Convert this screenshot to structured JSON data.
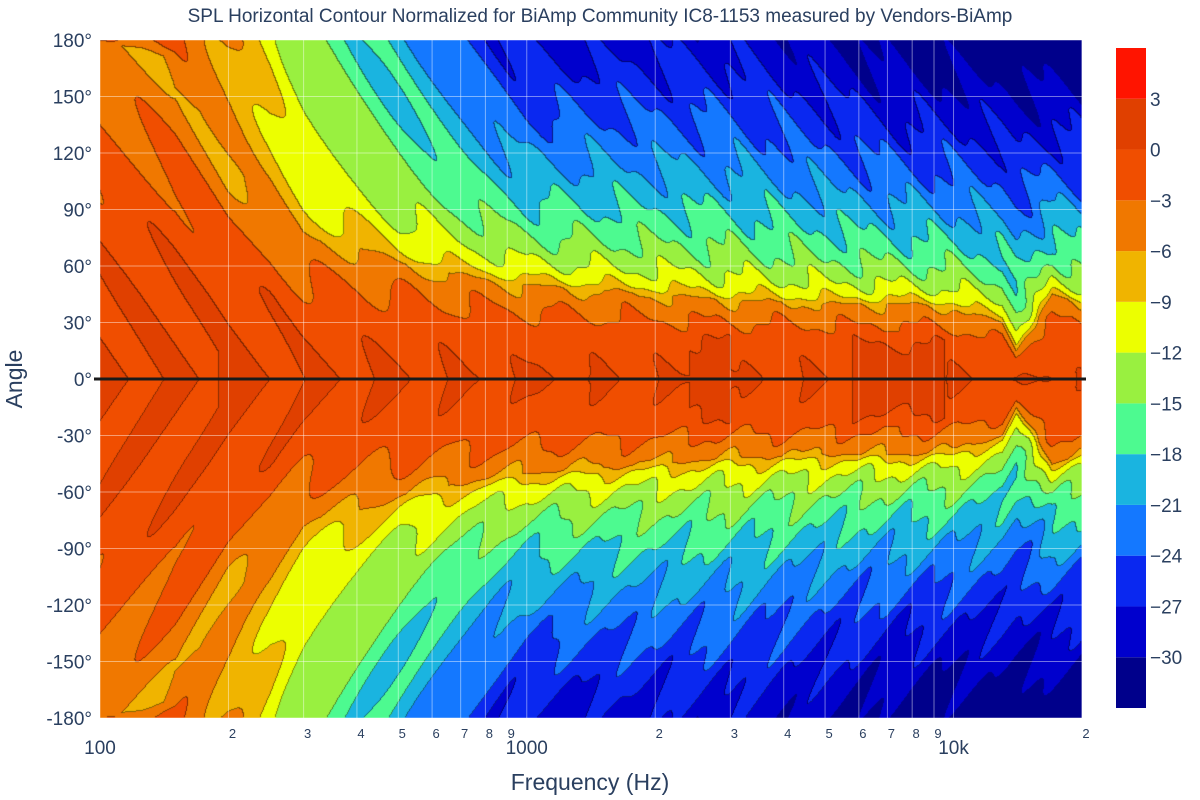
{
  "chart_data": {
    "type": "heatmap",
    "subtype": "filled-contour",
    "title": "SPL Horizontal Contour Normalized for BiAmp Community IC8-1153 measured by Vendors-BiAmp",
    "xlabel": "Frequency (Hz)",
    "ylabel": "Angle",
    "x_scale": "log",
    "xlim": [
      100,
      20000
    ],
    "ylim": [
      -180,
      180
    ],
    "x_major_ticks": [
      {
        "value": 100,
        "label": "100"
      },
      {
        "value": 1000,
        "label": "1000"
      },
      {
        "value": 10000,
        "label": "10k"
      }
    ],
    "x_minor_ticks": [
      {
        "value": 200,
        "label": "2"
      },
      {
        "value": 300,
        "label": "3"
      },
      {
        "value": 400,
        "label": "4"
      },
      {
        "value": 500,
        "label": "5"
      },
      {
        "value": 600,
        "label": "6"
      },
      {
        "value": 700,
        "label": "7"
      },
      {
        "value": 800,
        "label": "8"
      },
      {
        "value": 900,
        "label": "9"
      },
      {
        "value": 2000,
        "label": "2"
      },
      {
        "value": 3000,
        "label": "3"
      },
      {
        "value": 4000,
        "label": "4"
      },
      {
        "value": 5000,
        "label": "5"
      },
      {
        "value": 6000,
        "label": "6"
      },
      {
        "value": 7000,
        "label": "7"
      },
      {
        "value": 8000,
        "label": "8"
      },
      {
        "value": 9000,
        "label": "9"
      },
      {
        "value": 20000,
        "label": "2"
      }
    ],
    "y_ticks": [
      {
        "value": 180,
        "label": "180°"
      },
      {
        "value": 150,
        "label": "150°"
      },
      {
        "value": 120,
        "label": "120°"
      },
      {
        "value": 90,
        "label": "90°"
      },
      {
        "value": 60,
        "label": "60°"
      },
      {
        "value": 30,
        "label": "30°"
      },
      {
        "value": 0,
        "label": "0°"
      },
      {
        "value": -30,
        "label": "-30°"
      },
      {
        "value": -60,
        "label": "-60°"
      },
      {
        "value": -90,
        "label": "-90°"
      },
      {
        "value": -120,
        "label": "-120°"
      },
      {
        "value": -150,
        "label": "-150°"
      },
      {
        "value": -180,
        "label": "-180°"
      }
    ],
    "grid": true,
    "colorbar": {
      "range": [
        -33,
        6
      ],
      "step": 3,
      "tick_values": [
        3,
        0,
        -3,
        -6,
        -9,
        -12,
        -15,
        -18,
        -21,
        -24,
        -27,
        -30
      ],
      "tick_labels": [
        "3",
        "0",
        "−3",
        "−6",
        "−9",
        "−12",
        "−15",
        "−18",
        "−21",
        "−24",
        "−27",
        "−30"
      ],
      "colors": [
        "#00008b",
        "#0000cd",
        "#0a28f0",
        "#1478ff",
        "#1ab4e0",
        "#4dfa90",
        "#99f040",
        "#ecff00",
        "#f0b400",
        "#f07800",
        "#f04e00",
        "#e04000",
        "#ff1400"
      ]
    },
    "beamwidth_minus6dB_deg": [
      {
        "freq": 100,
        "angle": 180
      },
      {
        "freq": 150,
        "angle": 170
      },
      {
        "freq": 200,
        "angle": 110
      },
      {
        "freq": 250,
        "angle": 100
      },
      {
        "freq": 300,
        "angle": 75
      },
      {
        "freq": 400,
        "angle": 70
      },
      {
        "freq": 500,
        "angle": 62
      },
      {
        "freq": 700,
        "angle": 55
      },
      {
        "freq": 1000,
        "angle": 50
      },
      {
        "freq": 2000,
        "angle": 45
      },
      {
        "freq": 3000,
        "angle": 42
      },
      {
        "freq": 5000,
        "angle": 40
      },
      {
        "freq": 8000,
        "angle": 40
      },
      {
        "freq": 10000,
        "angle": 38
      },
      {
        "freq": 13000,
        "angle": 30
      },
      {
        "freq": 14000,
        "angle": 15
      },
      {
        "freq": 15000,
        "angle": 25
      },
      {
        "freq": 17000,
        "angle": 45
      },
      {
        "freq": 20000,
        "angle": 40
      }
    ],
    "rear_attenuation_dB": [
      {
        "freq": 100,
        "level": -3
      },
      {
        "freq": 150,
        "level": -3
      },
      {
        "freq": 200,
        "level": -6
      },
      {
        "freq": 250,
        "level": -10
      },
      {
        "freq": 300,
        "level": -14
      },
      {
        "freq": 500,
        "level": -20
      },
      {
        "freq": 700,
        "level": -24
      },
      {
        "freq": 1000,
        "level": -28
      },
      {
        "freq": 3000,
        "level": -28
      },
      {
        "freq": 8000,
        "level": -32
      },
      {
        "freq": 20000,
        "level": -33
      }
    ]
  }
}
